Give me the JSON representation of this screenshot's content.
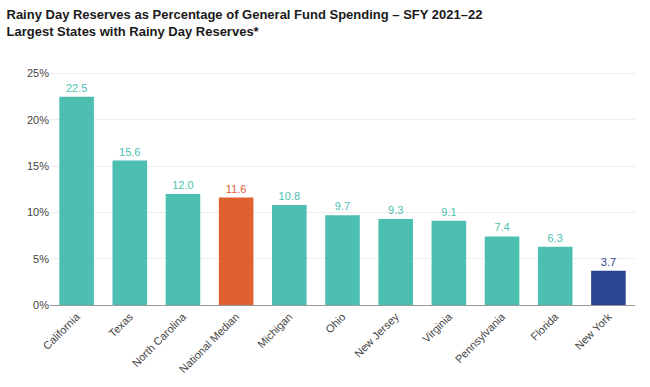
{
  "chart_data": {
    "type": "bar",
    "title": "Rainy Day Reserves as Percentage of General Fund Spending – SFY 2021–22",
    "subtitle": "Largest States with Rainy Day Reserves*",
    "categories": [
      "California",
      "Texas",
      "North Carolina",
      "National Median",
      "Michigan",
      "Ohio",
      "New Jersey",
      "Virginia",
      "Pennsylvania",
      "Florida",
      "New York"
    ],
    "values": [
      22.5,
      15.6,
      12.0,
      11.6,
      10.8,
      9.7,
      9.3,
      9.1,
      7.4,
      6.3,
      3.7
    ],
    "value_labels": [
      "22.5",
      "15.6",
      "12.0",
      "11.6",
      "10.8",
      "9.7",
      "9.3",
      "9.1",
      "7.4",
      "6.3",
      "3.7"
    ],
    "colors": [
      "#4DBFB0",
      "#4DBFB0",
      "#4DBFB0",
      "#E06030",
      "#4DBFB0",
      "#4DBFB0",
      "#4DBFB0",
      "#4DBFB0",
      "#4DBFB0",
      "#4DBFB0",
      "#2B4590"
    ],
    "data_labels": true,
    "ylim": [
      0,
      27
    ],
    "yticks": [
      {
        "value": 0,
        "label": "0%"
      },
      {
        "value": 5,
        "label": "5%"
      },
      {
        "value": 10,
        "label": "10%"
      },
      {
        "value": 15,
        "label": "15%"
      },
      {
        "value": 20,
        "label": "20%"
      },
      {
        "value": 25,
        "label": "25%"
      }
    ],
    "grid": true
  }
}
